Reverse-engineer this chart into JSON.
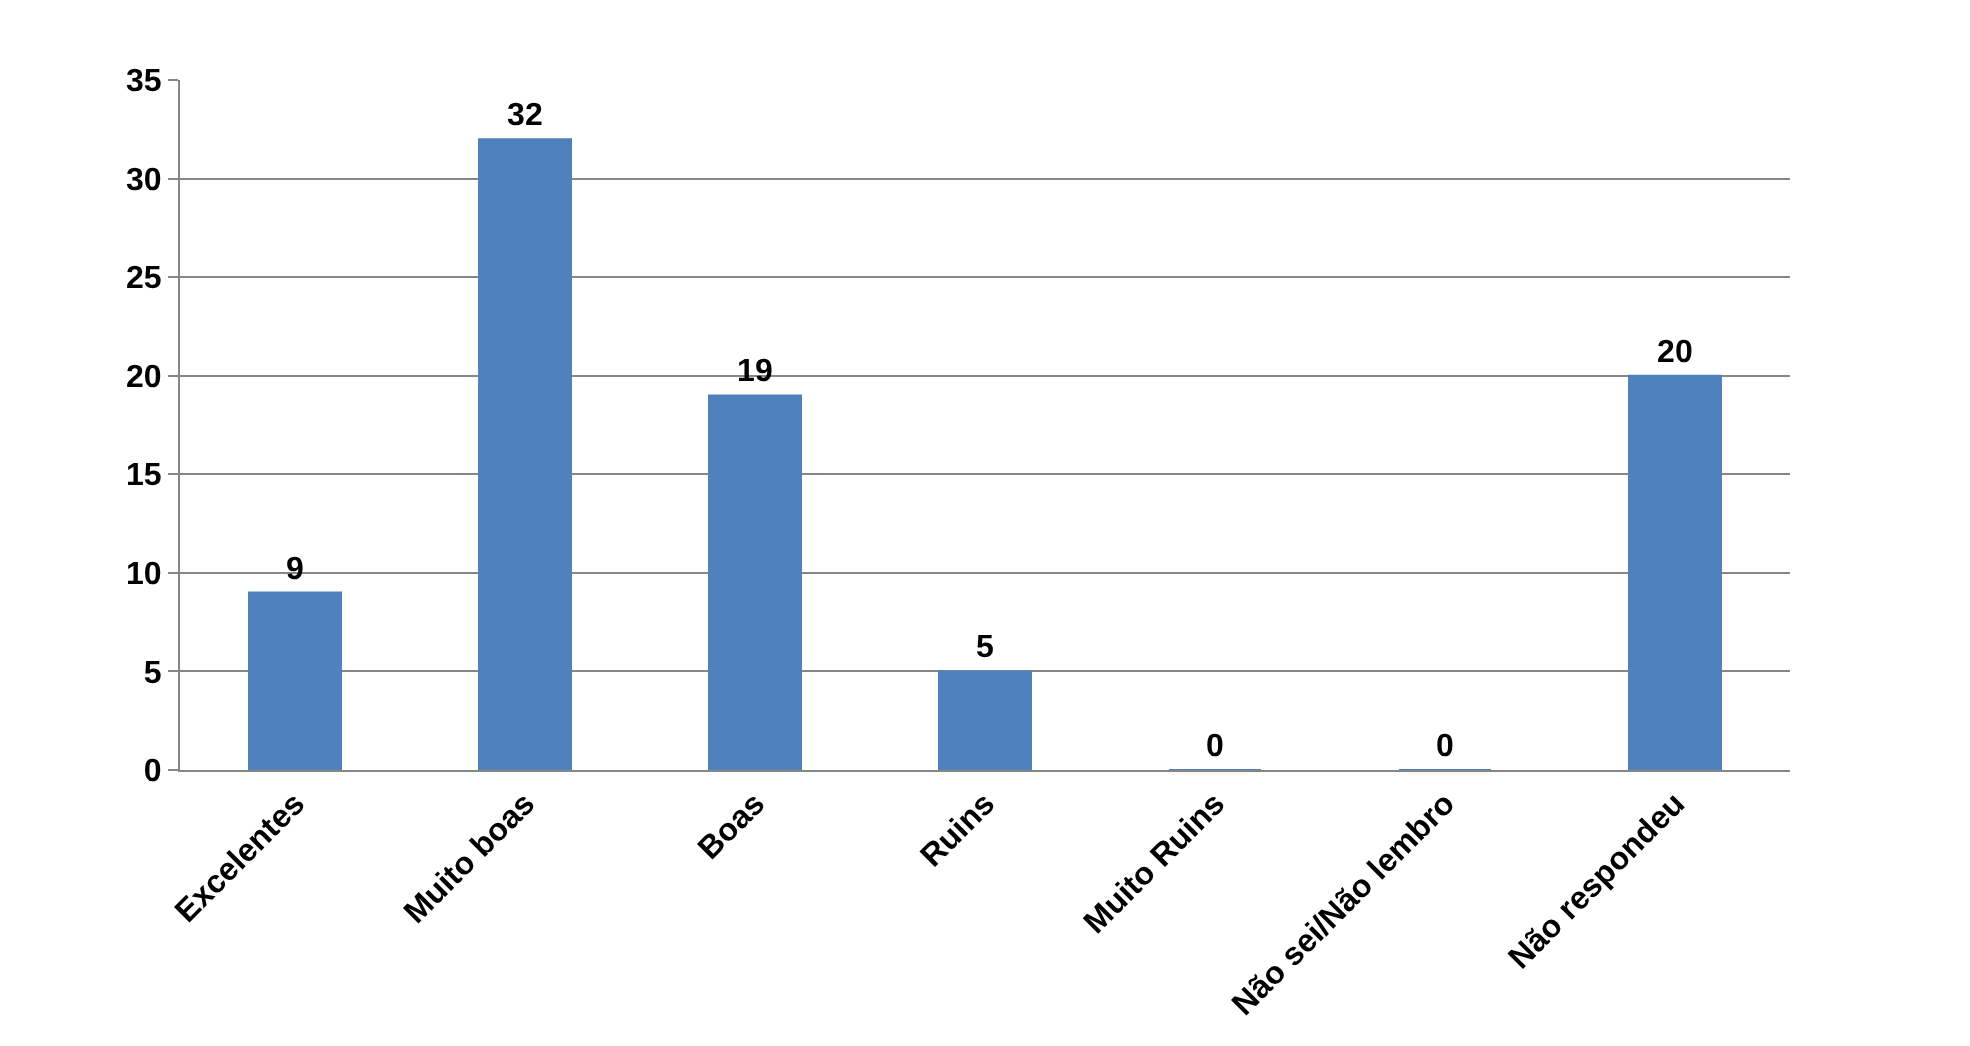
{
  "chart_data": {
    "type": "bar",
    "categories": [
      "Excelentes",
      "Muito boas",
      "Boas",
      "Ruins",
      "Muito Ruins",
      "Não sei/Não lembro",
      "Não respondeu"
    ],
    "values": [
      9,
      32,
      19,
      5,
      0,
      0,
      20
    ],
    "color": "#4f81bd",
    "ylim": [
      0,
      35
    ],
    "yticks": [
      0,
      5,
      10,
      15,
      20,
      25,
      30,
      35
    ],
    "grid": "y",
    "data_labels": true
  }
}
